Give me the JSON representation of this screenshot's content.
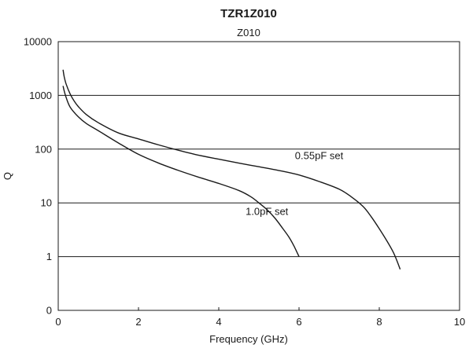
{
  "chart_data": {
    "type": "line",
    "title": "TZR1Z010",
    "subtitle": "Z010",
    "xlabel": "Frequency  (GHz)",
    "ylabel": "Q",
    "xlim": [
      0,
      10
    ],
    "ylim": [
      0.1,
      10000
    ],
    "yscale": "log",
    "grid": "horizontal",
    "x_ticks": [
      {
        "value": 0,
        "label": "0"
      },
      {
        "value": 2,
        "label": "2"
      },
      {
        "value": 4,
        "label": "4"
      },
      {
        "value": 6,
        "label": "6"
      },
      {
        "value": 8,
        "label": "8"
      },
      {
        "value": 10,
        "label": "10"
      }
    ],
    "y_ticks": [
      {
        "value": 0.1,
        "label": "0"
      },
      {
        "value": 1,
        "label": "1"
      },
      {
        "value": 10,
        "label": "10"
      },
      {
        "value": 100,
        "label": "100"
      },
      {
        "value": 1000,
        "label": "1000"
      },
      {
        "value": 10000,
        "label": "10000"
      }
    ],
    "series": [
      {
        "name": "0.55pF set",
        "color": "#1a1a1a",
        "points": [
          [
            0.12,
            3000
          ],
          [
            0.15,
            2200
          ],
          [
            0.2,
            1600
          ],
          [
            0.3,
            1050
          ],
          [
            0.4,
            780
          ],
          [
            0.5,
            620
          ],
          [
            0.7,
            440
          ],
          [
            1.0,
            310
          ],
          [
            1.5,
            200
          ],
          [
            2.0,
            155
          ],
          [
            2.5,
            120
          ],
          [
            3.0,
            95
          ],
          [
            3.5,
            77
          ],
          [
            4.0,
            65
          ],
          [
            4.5,
            55
          ],
          [
            5.0,
            47
          ],
          [
            5.5,
            40
          ],
          [
            6.0,
            33
          ],
          [
            6.5,
            25
          ],
          [
            7.0,
            18
          ],
          [
            7.3,
            13
          ],
          [
            7.6,
            8.5
          ],
          [
            7.8,
            5.5
          ],
          [
            8.0,
            3.3
          ],
          [
            8.2,
            1.9
          ],
          [
            8.35,
            1.2
          ],
          [
            8.45,
            0.8
          ],
          [
            8.52,
            0.58
          ]
        ]
      },
      {
        "name": "1.0pF set",
        "color": "#1a1a1a",
        "points": [
          [
            0.12,
            1500
          ],
          [
            0.15,
            1200
          ],
          [
            0.2,
            900
          ],
          [
            0.3,
            600
          ],
          [
            0.5,
            400
          ],
          [
            0.7,
            300
          ],
          [
            1.0,
            220
          ],
          [
            1.5,
            130
          ],
          [
            2.0,
            80
          ],
          [
            2.5,
            55
          ],
          [
            3.0,
            40
          ],
          [
            3.5,
            30
          ],
          [
            4.0,
            23
          ],
          [
            4.5,
            17
          ],
          [
            4.8,
            13
          ],
          [
            5.0,
            10
          ],
          [
            5.2,
            7.5
          ],
          [
            5.4,
            5.2
          ],
          [
            5.6,
            3.3
          ],
          [
            5.75,
            2.3
          ],
          [
            5.87,
            1.6
          ],
          [
            5.95,
            1.2
          ],
          [
            6.0,
            1.0
          ]
        ]
      }
    ],
    "annotations": [
      {
        "text": "0.55pF set",
        "x": 6.5,
        "y": 65
      },
      {
        "text": "1.0pF set",
        "x": 5.2,
        "y": 6.0
      }
    ]
  }
}
